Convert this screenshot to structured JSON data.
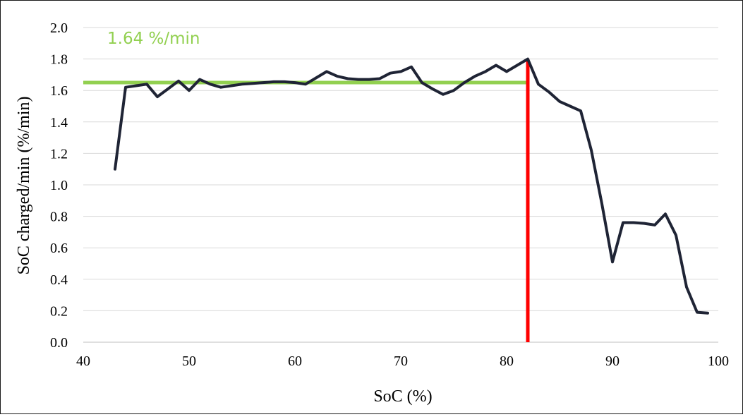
{
  "chart_data": {
    "type": "line",
    "title": "",
    "xlabel": "SoC (%)",
    "ylabel": "SoC charged/min (%/min)",
    "xlim": [
      40,
      100
    ],
    "ylim": [
      0,
      2.0
    ],
    "x_ticks": [
      "40",
      "50",
      "60",
      "70",
      "80",
      "90",
      "100"
    ],
    "y_ticks": [
      "0.0",
      "0.2",
      "0.4",
      "0.6",
      "0.8",
      "1.0",
      "1.2",
      "1.4",
      "1.6",
      "1.8",
      "2.0"
    ],
    "grid": "horizontal",
    "series": [
      {
        "color": "#1f2435",
        "x": [
          43,
          44,
          45,
          46,
          47,
          48,
          49,
          50,
          51,
          52,
          53,
          54,
          55,
          56,
          57,
          58,
          59,
          60,
          61,
          62,
          63,
          64,
          65,
          66,
          67,
          68,
          69,
          70,
          71,
          72,
          73,
          74,
          75,
          76,
          77,
          78,
          79,
          80,
          81,
          82,
          83,
          84,
          85,
          86,
          87,
          88,
          89,
          90,
          91,
          92,
          93,
          94,
          95,
          96,
          97,
          98,
          99
        ],
        "y": [
          1.1,
          1.62,
          1.63,
          1.64,
          1.56,
          1.61,
          1.66,
          1.6,
          1.67,
          1.64,
          1.62,
          1.63,
          1.64,
          1.645,
          1.65,
          1.655,
          1.655,
          1.65,
          1.64,
          1.68,
          1.72,
          1.69,
          1.675,
          1.67,
          1.67,
          1.675,
          1.71,
          1.72,
          1.75,
          1.65,
          1.61,
          1.575,
          1.6,
          1.65,
          1.69,
          1.72,
          1.76,
          1.72,
          1.76,
          1.8,
          1.64,
          1.59,
          1.53,
          1.5,
          1.47,
          1.22,
          0.88,
          0.51,
          0.76,
          0.76,
          0.755,
          0.745,
          0.815,
          0.68,
          0.35,
          0.19,
          0.185
        ]
      }
    ],
    "reference_lines": [
      {
        "orientation": "horizontal",
        "y": 1.65,
        "x_from": 40,
        "x_to": 82,
        "color": "#92d050"
      },
      {
        "orientation": "vertical",
        "x": 82,
        "y_from": 0,
        "y_to": 1.8,
        "color": "#ff0000"
      }
    ],
    "annotations": [
      {
        "text": "1.64 %/min",
        "color": "#92d050"
      }
    ]
  }
}
